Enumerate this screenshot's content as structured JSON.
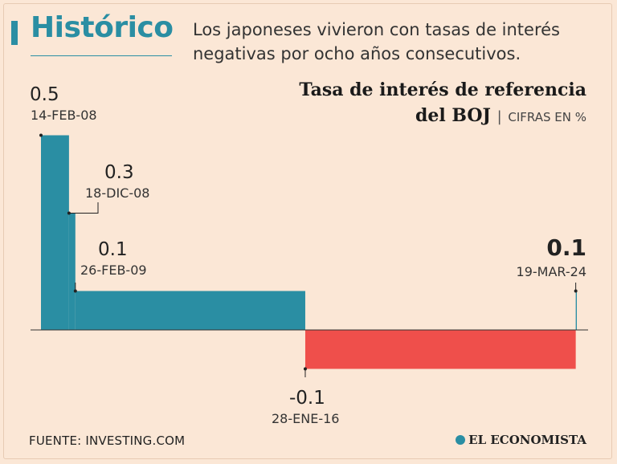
{
  "header": {
    "section_title": "Histórico",
    "subtitle": "Los japoneses vivieron con tasas de interés negativas por ocho años consecutivos."
  },
  "chart_data": {
    "type": "step-area",
    "title_line1": "Tasa de interés de referencia",
    "title_line2": "del BOJ",
    "title_separator": "|",
    "unit": "CIFRAS EN %",
    "xlabel": "",
    "ylabel": "",
    "ylim": [
      -0.1,
      0.5
    ],
    "x_range": [
      "2008-02-14",
      "2024-03-31"
    ],
    "colors": {
      "positive": "#2a8ea3",
      "negative": "#ef4f4b",
      "baseline": "#333333"
    },
    "points": [
      {
        "date": "2008-02-14",
        "value": 0.5,
        "value_label": "0.5",
        "date_label": "14-FEB-08",
        "highlight": false
      },
      {
        "date": "2008-12-18",
        "value": 0.3,
        "value_label": "0.3",
        "date_label": "18-DIC-08",
        "highlight": false
      },
      {
        "date": "2009-02-26",
        "value": 0.1,
        "value_label": "0.1",
        "date_label": "26-FEB-09",
        "highlight": false
      },
      {
        "date": "2016-01-28",
        "value": -0.1,
        "value_label": "-0.1",
        "date_label": "28-ENE-16",
        "highlight": false
      },
      {
        "date": "2024-03-19",
        "value": 0.1,
        "value_label": "0.1",
        "date_label": "19-MAR-24",
        "highlight": true
      }
    ]
  },
  "footer": {
    "source": "FUENTE: INVESTING.COM",
    "logo": "EL ECONOMISTA"
  }
}
